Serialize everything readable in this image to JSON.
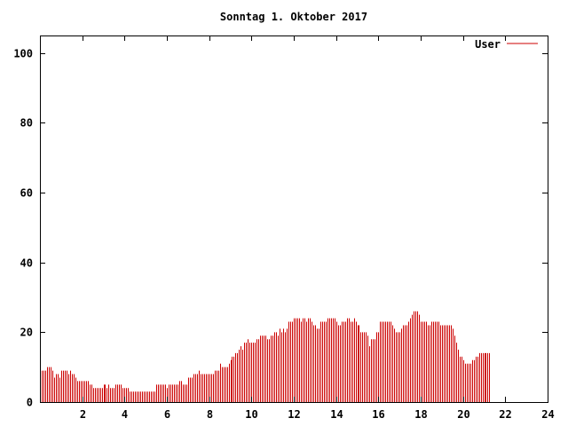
{
  "chart_data": {
    "type": "bar",
    "title": "Sonntag 1. Oktober 2017",
    "xlabel": "",
    "ylabel": "",
    "xlim": [
      0,
      24
    ],
    "ylim": [
      0,
      105
    ],
    "x_ticks": [
      2,
      4,
      6,
      8,
      10,
      12,
      14,
      16,
      18,
      20,
      22,
      24
    ],
    "y_ticks": [
      0,
      20,
      40,
      60,
      80,
      100
    ],
    "grid": false,
    "legend_position": "top-right",
    "series": [
      {
        "name": "User",
        "color": "#cc0000",
        "sample_interval_minutes": 5,
        "values": [
          11,
          9,
          9,
          9,
          10,
          10,
          10,
          9,
          7,
          8,
          8,
          7,
          9,
          9,
          9,
          9,
          8,
          9,
          8,
          8,
          7,
          6,
          6,
          6,
          6,
          6,
          6,
          6,
          5,
          5,
          4,
          4,
          4,
          4,
          4,
          4,
          5,
          5,
          4,
          5,
          4,
          4,
          4,
          5,
          5,
          5,
          5,
          4,
          4,
          4,
          4,
          3,
          3,
          3,
          3,
          3,
          3,
          3,
          3,
          3,
          3,
          3,
          3,
          3,
          3,
          3,
          5,
          5,
          5,
          5,
          5,
          5,
          4,
          5,
          5,
          5,
          5,
          5,
          5,
          6,
          6,
          5,
          5,
          5,
          7,
          7,
          7,
          8,
          8,
          8,
          9,
          8,
          8,
          8,
          8,
          8,
          8,
          8,
          8,
          9,
          9,
          9,
          11,
          10,
          10,
          10,
          10,
          11,
          12,
          13,
          13,
          14,
          14,
          15,
          16,
          15,
          17,
          17,
          18,
          17,
          17,
          17,
          17,
          18,
          18,
          19,
          19,
          19,
          19,
          18,
          18,
          19,
          19,
          20,
          20,
          19,
          21,
          20,
          21,
          20,
          21,
          23,
          23,
          23,
          24,
          24,
          24,
          24,
          23,
          24,
          24,
          23,
          24,
          24,
          23,
          22,
          22,
          21,
          21,
          23,
          23,
          23,
          23,
          24,
          24,
          24,
          24,
          24,
          23,
          22,
          22,
          23,
          23,
          23,
          24,
          24,
          23,
          23,
          24,
          23,
          22,
          22,
          20,
          20,
          20,
          20,
          19,
          16,
          18,
          18,
          18,
          20,
          20,
          23,
          23,
          23,
          23,
          23,
          23,
          23,
          22,
          21,
          20,
          20,
          20,
          21,
          22,
          22,
          22,
          23,
          24,
          25,
          26,
          26,
          26,
          25,
          23,
          23,
          23,
          23,
          22,
          22,
          23,
          23,
          23,
          23,
          23,
          22,
          22,
          22,
          22,
          22,
          22,
          22,
          21,
          19,
          17,
          15,
          13,
          13,
          12,
          11,
          11,
          11,
          11,
          12,
          12,
          13,
          13,
          14,
          14,
          14,
          14,
          14,
          14,
          14
        ]
      }
    ]
  }
}
